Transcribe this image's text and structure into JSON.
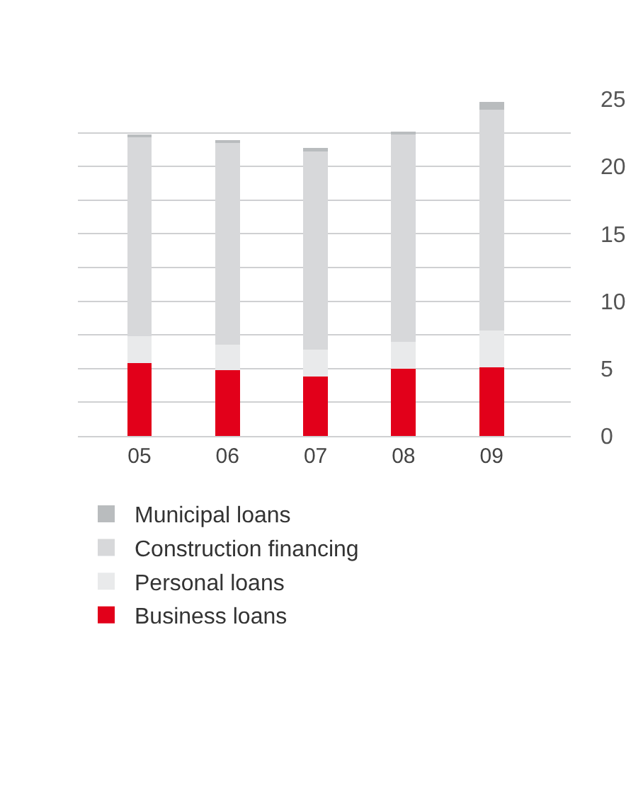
{
  "chart_data": {
    "type": "bar",
    "stacked": true,
    "categories": [
      "05",
      "06",
      "07",
      "08",
      "09"
    ],
    "series": [
      {
        "name": "Business loans",
        "color": "#e2001a",
        "values": [
          5.4,
          4.9,
          4.4,
          5.0,
          5.1
        ]
      },
      {
        "name": "Personal loans",
        "color": "#e9eaeb",
        "values": [
          2.0,
          1.9,
          2.0,
          2.0,
          2.7
        ]
      },
      {
        "name": "Construction financing",
        "color": "#d7d8da",
        "values": [
          14.8,
          15.0,
          14.8,
          15.4,
          16.4
        ]
      },
      {
        "name": "Municipal loans",
        "color": "#b9bcbe",
        "values": [
          0.1,
          0.1,
          0.2,
          0.2,
          0.6
        ]
      }
    ],
    "ylim": [
      0,
      25
    ],
    "yticks": [
      0,
      {
        "value": 2.5,
        "label": null
      },
      5,
      {
        "value": 7.5,
        "label": null
      },
      10,
      {
        "value": 12.5,
        "label": null
      },
      15,
      {
        "value": 17.5,
        "label": null
      },
      20,
      {
        "value": 22.5,
        "label": null
      },
      25
    ],
    "grid": "y",
    "legend": "bottom"
  }
}
